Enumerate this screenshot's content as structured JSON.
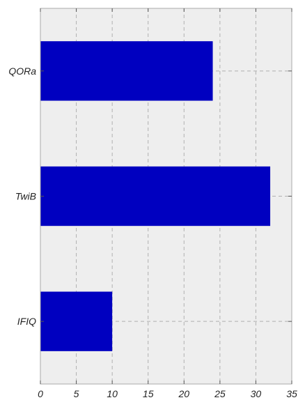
{
  "chart_data": {
    "type": "bar",
    "orientation": "horizontal",
    "categories": [
      "QORa",
      "TwiB",
      "IFIQ"
    ],
    "values": [
      24,
      32,
      10
    ],
    "xlim": [
      0,
      35
    ],
    "xticks": [
      "0",
      "5",
      "10",
      "15",
      "20",
      "25",
      "30",
      "35"
    ],
    "title": "",
    "xlabel": "",
    "ylabel": "",
    "grid": true,
    "colors": {
      "bar": "#0000c0",
      "plot_background": "#eeeeee",
      "grid": "#b0b0b0",
      "axis_frame": "#aaaaaa"
    }
  }
}
